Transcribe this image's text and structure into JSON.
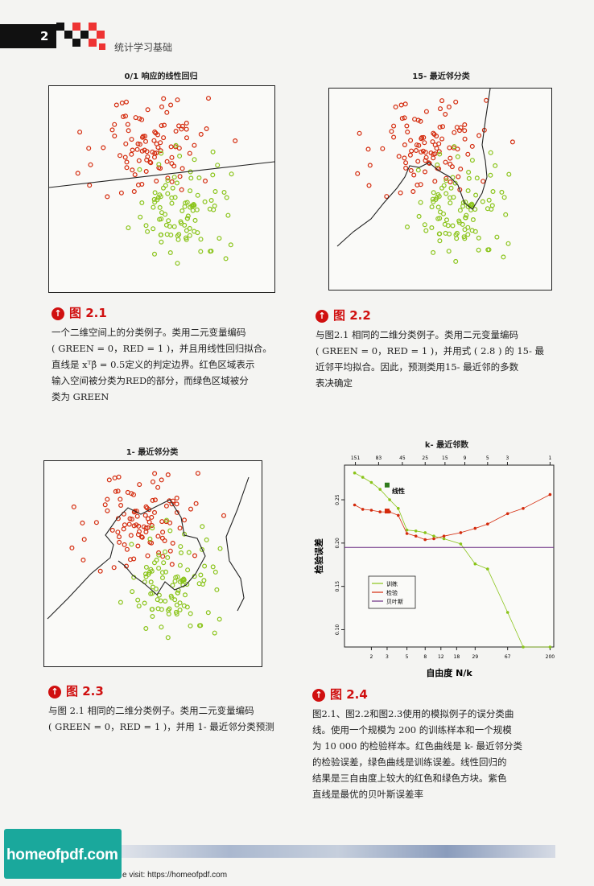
{
  "header": {
    "page_number": "2",
    "book_title": "统计学习基础"
  },
  "colors": {
    "red": "#d42a0c",
    "green": "#8ac41a",
    "dark_green": "#2f7a1c",
    "purple": "#6a2c82",
    "accent": "#d01010"
  },
  "figures": [
    {
      "id": "fig-2-1",
      "title": "0/1 响应的线性回归",
      "caption_label": "图 2.1",
      "caption_lines": [
        "一个二维空间上的分类例子。类用二元变量编码",
        "( GREEN = 0，RED = 1 )，并且用线性回归拟合。",
        "直线是 xᵀβ̂ = 0.5定义的判定边界。红色区域表示",
        "输入空间被分类为RED的部分，而绿色区域被分",
        "类为 GREEN"
      ]
    },
    {
      "id": "fig-2-2",
      "title": "15- 最近邻分类",
      "caption_label": "图 2.2",
      "caption_lines": [
        "与图2.1 相同的二维分类例子。类用二元变量编码",
        "( GREEN = 0，RED = 1 )，并用式 ( 2.8 ) 的 15- 最",
        "近邻平均拟合。因此，预测类用15- 最近邻的多数",
        "表决确定"
      ]
    },
    {
      "id": "fig-2-3",
      "title": "1- 最近邻分类",
      "caption_label": "图 2.3",
      "caption_lines": [
        "与图 2.1 相同的二维分类例子。类用二元变量编码",
        "( GREEN = 0，RED = 1 )，并用 1- 最近邻分类预测"
      ]
    },
    {
      "id": "fig-2-4",
      "title": "k- 最近邻数",
      "caption_label": "图 2.4",
      "caption_lines": [
        "图2.1、图2.2和图2.3使用的模拟例子的误分类曲",
        "线。使用一个规模为 200 的训练样本和一个规模",
        "为 10 000 的检验样本。红色曲线是 k- 最近邻分类",
        "的检验误差，绿色曲线是训练误差。线性回归的",
        "结果是三自由度上较大的红色和绿色方块。紫色",
        "直线是最优的贝叶斯误差率"
      ]
    }
  ],
  "chart_data": {
    "type": "line",
    "title": "k- 最近邻数",
    "xlabel": "自由度 N/k",
    "ylabel": "检验误差",
    "x_scale": "log",
    "x_ticks": [
      "2",
      "3",
      "5",
      "8",
      "12",
      "18",
      "29",
      "67",
      "200"
    ],
    "top_ticks": [
      "151",
      "83",
      "45",
      "25",
      "15",
      "9",
      "5",
      "3",
      "1"
    ],
    "y_ticks": [
      "0.10",
      "0.15",
      "0.20",
      "0.25"
    ],
    "ylim": [
      0.08,
      0.29
    ],
    "legend": {
      "position": "middle-left",
      "entries": [
        "训练",
        "检验",
        "贝叶斯"
      ]
    },
    "annotation": "线性",
    "series": [
      {
        "name": "训练",
        "color": "#8ac41a",
        "x": [
          1.3,
          1.6,
          2.0,
          2.5,
          3.2,
          4.0,
          5.0,
          6.3,
          8.0,
          10,
          13,
          20,
          29,
          40,
          67,
          100,
          200
        ],
        "values": [
          0.281,
          0.276,
          0.27,
          0.262,
          0.25,
          0.24,
          0.215,
          0.214,
          0.212,
          0.208,
          0.205,
          0.199,
          0.176,
          0.17,
          0.12,
          0.06,
          0.0
        ]
      },
      {
        "name": "检验",
        "color": "#d42a0c",
        "x": [
          1.3,
          1.6,
          2.0,
          2.5,
          3.2,
          4.0,
          5.0,
          6.3,
          8.0,
          10,
          13,
          20,
          29,
          40,
          67,
          100,
          200
        ],
        "values": [
          0.244,
          0.239,
          0.238,
          0.236,
          0.236,
          0.232,
          0.211,
          0.208,
          0.204,
          0.205,
          0.208,
          0.212,
          0.217,
          0.222,
          0.234,
          0.24,
          0.256
        ]
      },
      {
        "name": "贝叶斯",
        "color": "#6a2c82",
        "x": [
          1.0,
          200
        ],
        "values": [
          0.195,
          0.195
        ]
      }
    ],
    "linear_regression": {
      "df": 3,
      "train": 0.267,
      "test": 0.237
    }
  },
  "footer": {
    "watermark": "homeofpdf.com",
    "visit": "e visit: https://homeofpdf.com"
  }
}
